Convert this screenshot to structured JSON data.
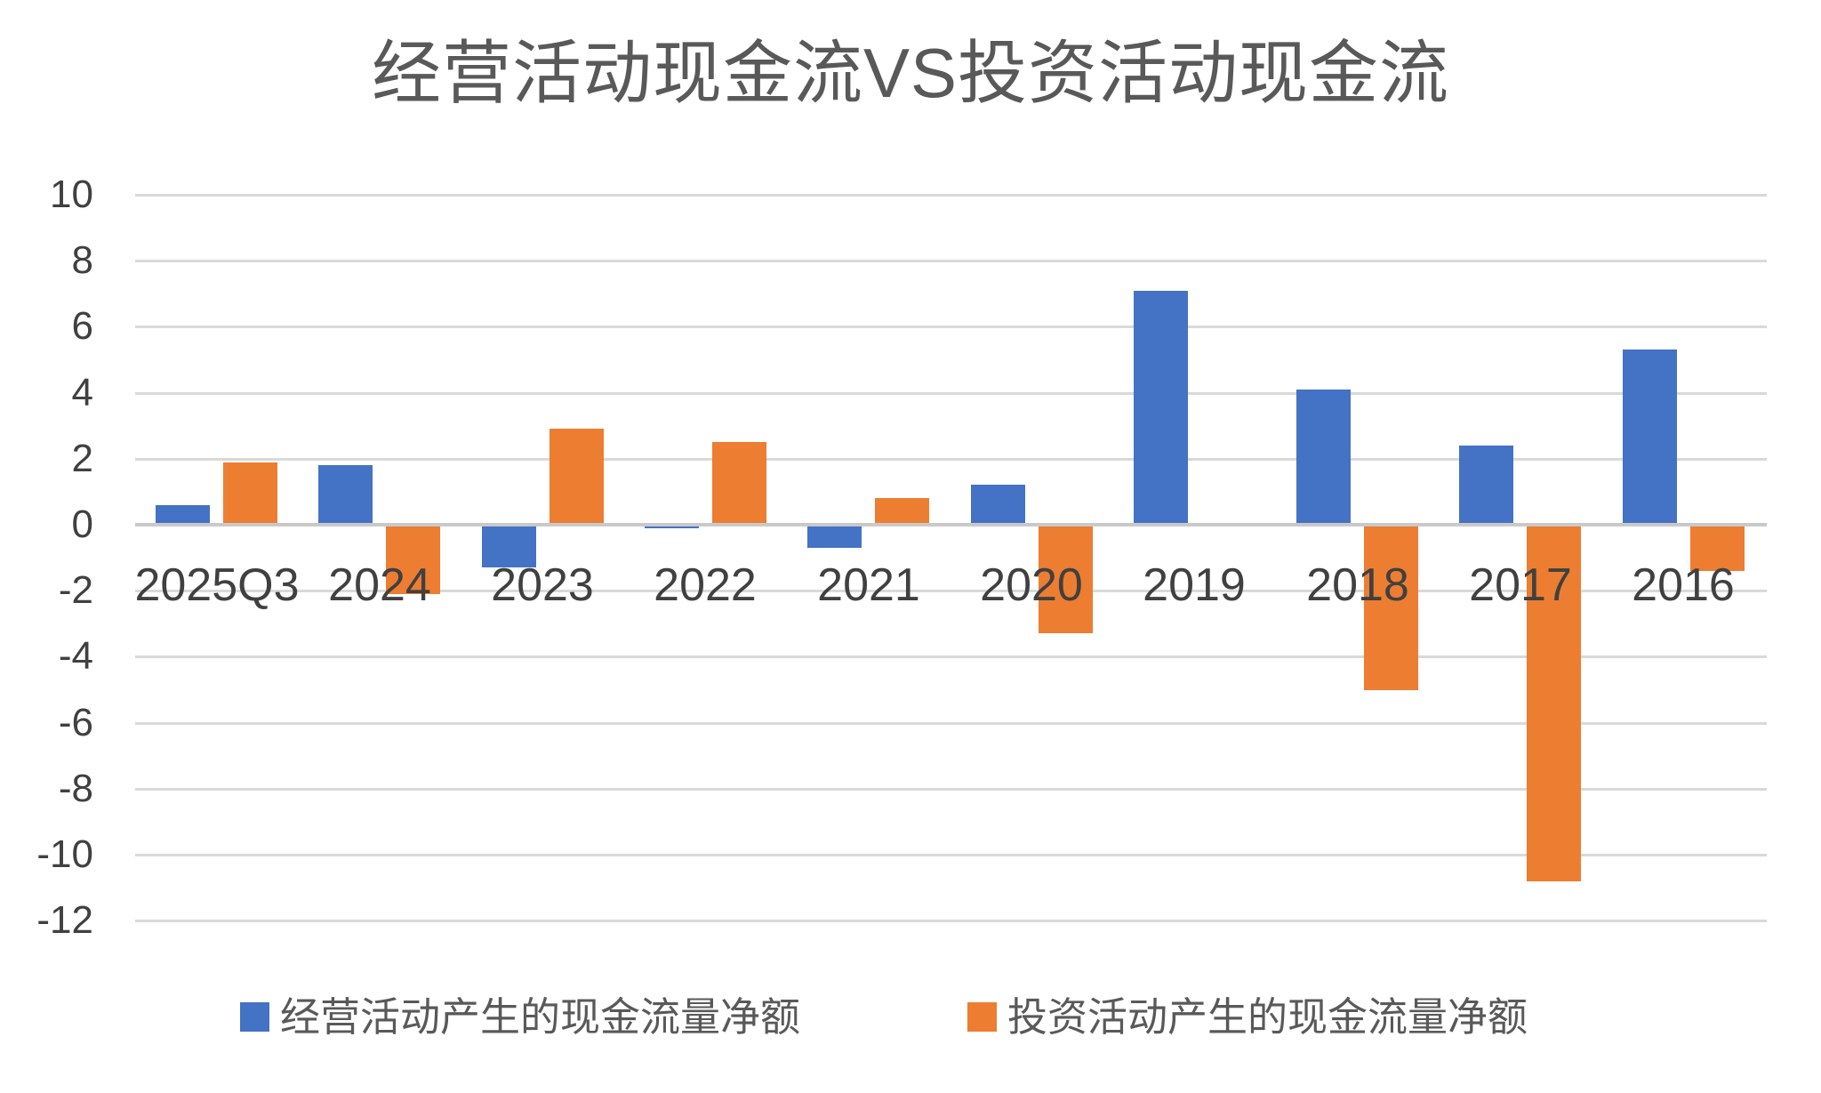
{
  "title": "经营活动现金流VS投资活动现金流",
  "colors": {
    "operating_series": "#4472C4",
    "investing_series": "#ED7D31",
    "gridline": "#D9D9D9",
    "zero_axis_line": "#C9C9C9",
    "tick_text": "#404040",
    "category_text": "#404040",
    "title_text": "#595959",
    "legend_text": "#595959",
    "background": "#FFFFFF"
  },
  "chart_data": {
    "type": "bar",
    "title": "经营活动现金流VS投资活动现金流",
    "categories": [
      "2025Q3",
      "2024",
      "2023",
      "2022",
      "2021",
      "2020",
      "2019",
      "2018",
      "2017",
      "2016"
    ],
    "series": [
      {
        "name": "经营活动产生的现金流量净额",
        "color": "#4472C4",
        "values": [
          0.6,
          1.8,
          -1.3,
          -0.1,
          -0.7,
          1.2,
          7.1,
          4.1,
          2.4,
          5.3
        ]
      },
      {
        "name": "投资活动产生的现金流量净额",
        "color": "#ED7D31",
        "values": [
          1.9,
          -2.1,
          2.9,
          2.5,
          0.8,
          -3.3,
          0,
          -5.0,
          -10.8,
          -1.4
        ]
      }
    ],
    "xlabel": "",
    "ylabel": "",
    "ylim": [
      -12,
      10
    ],
    "ytick_step": 2,
    "yticks": [
      10,
      8,
      6,
      4,
      2,
      0,
      -2,
      -4,
      -6,
      -8,
      -10,
      -12
    ],
    "grid": true,
    "legend_position": "bottom"
  },
  "legend": {
    "items": [
      {
        "label": "经营活动产生的现金流量净额",
        "color": "#4472C4"
      },
      {
        "label": "投资活动产生的现金流量净额",
        "color": "#ED7D31"
      }
    ]
  }
}
